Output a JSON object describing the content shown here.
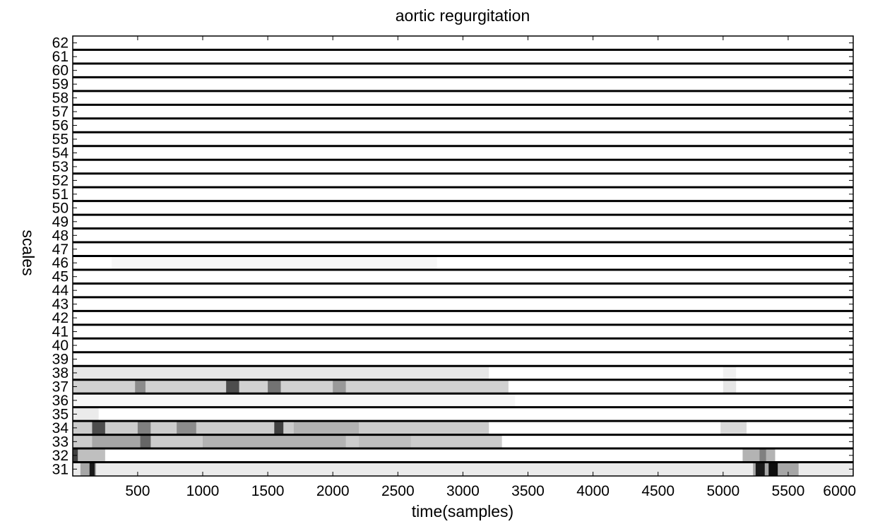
{
  "chart_data": {
    "type": "heatmap",
    "title": "aortic regurgitation",
    "xlabel": "time(samples)",
    "ylabel": "scales",
    "xlim": [
      1,
      6000
    ],
    "xticks": [
      500,
      1000,
      1500,
      2000,
      2500,
      3000,
      3500,
      4000,
      4500,
      5000,
      5500,
      6000
    ],
    "scales": [
      31,
      32,
      33,
      34,
      35,
      36,
      37,
      38,
      39,
      40,
      41,
      42,
      43,
      44,
      45,
      46,
      47,
      48,
      49,
      50,
      51,
      52,
      53,
      54,
      55,
      56,
      57,
      58,
      59,
      60,
      61,
      62
    ],
    "colormap": "gray-inverted",
    "separator_color": "#000000",
    "band_segments": [
      {
        "scale": 31,
        "segments": [
          [
            1,
            6000,
            0.08
          ],
          [
            60,
            180,
            0.35
          ],
          [
            130,
            170,
            0.9
          ],
          [
            5230,
            5580,
            0.35
          ],
          [
            5250,
            5320,
            0.9
          ],
          [
            5350,
            5420,
            0.95
          ]
        ]
      },
      {
        "scale": 32,
        "segments": [
          [
            1,
            250,
            0.25
          ],
          [
            1,
            40,
            0.75
          ],
          [
            5150,
            5400,
            0.3
          ],
          [
            5280,
            5330,
            0.5
          ]
        ]
      },
      {
        "scale": 33,
        "segments": [
          [
            1,
            3300,
            0.2
          ],
          [
            150,
            600,
            0.35
          ],
          [
            520,
            600,
            0.6
          ],
          [
            1000,
            1100,
            0.5
          ],
          [
            1380,
            1450,
            0.85
          ],
          [
            1000,
            2100,
            0.3
          ],
          [
            2200,
            2600,
            0.25
          ]
        ]
      },
      {
        "scale": 34,
        "segments": [
          [
            1,
            3200,
            0.2
          ],
          [
            150,
            250,
            0.7
          ],
          [
            500,
            600,
            0.5
          ],
          [
            800,
            950,
            0.45
          ],
          [
            1550,
            1620,
            0.75
          ],
          [
            1700,
            2200,
            0.3
          ],
          [
            4980,
            5180,
            0.15
          ]
        ]
      },
      {
        "scale": 35,
        "segments": [
          [
            1,
            200,
            0.08
          ]
        ]
      },
      {
        "scale": 36,
        "segments": [
          [
            1,
            3400,
            0.03
          ]
        ]
      },
      {
        "scale": 37,
        "segments": [
          [
            1,
            3350,
            0.18
          ],
          [
            480,
            560,
            0.45
          ],
          [
            1180,
            1280,
            0.7
          ],
          [
            1500,
            1600,
            0.55
          ],
          [
            2000,
            2100,
            0.4
          ],
          [
            5000,
            5100,
            0.1
          ]
        ]
      },
      {
        "scale": 38,
        "segments": [
          [
            1,
            3200,
            0.1
          ],
          [
            5000,
            5100,
            0.06
          ]
        ]
      },
      {
        "scale": 46,
        "segments": [
          [
            300,
            2800,
            0.03
          ]
        ]
      }
    ]
  }
}
